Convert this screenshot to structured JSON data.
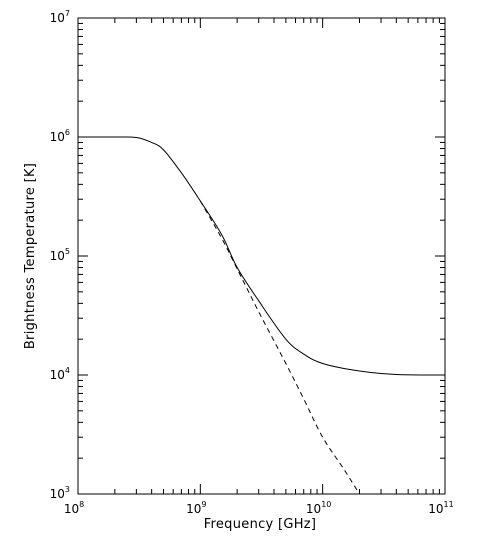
{
  "chart_data": {
    "type": "line",
    "title": "",
    "xlabel": "Frequency [GHz]",
    "ylabel": "Brightness Temperature [K]",
    "xscale": "log",
    "yscale": "log",
    "xlim": [
      100000000,
      100000000000
    ],
    "ylim": [
      1000,
      10000000
    ],
    "grid": false,
    "x_ticks": [
      {
        "base": "10",
        "exp": "8",
        "value": 100000000
      },
      {
        "base": "10",
        "exp": "9",
        "value": 1000000000
      },
      {
        "base": "10",
        "exp": "10",
        "value": 10000000000
      },
      {
        "base": "10",
        "exp": "11",
        "value": 100000000000
      }
    ],
    "y_ticks": [
      {
        "base": "10",
        "exp": "3",
        "value": 1000
      },
      {
        "base": "10",
        "exp": "4",
        "value": 10000
      },
      {
        "base": "10",
        "exp": "5",
        "value": 100000
      },
      {
        "base": "10",
        "exp": "6",
        "value": 1000000
      },
      {
        "base": "10",
        "exp": "7",
        "value": 10000000
      }
    ],
    "series": [
      {
        "style": "solid",
        "x": [
          100000000,
          200000000,
          300000000,
          400000000,
          500000000,
          700000000,
          1000000000,
          1500000000,
          2000000000,
          3000000000,
          5000000000,
          7000000000,
          10000000000,
          20000000000,
          40000000000,
          100000000000
        ],
        "y": [
          1000000,
          1000000,
          990000,
          900000,
          780000,
          500000,
          290000,
          150000,
          80000,
          42000,
          20000,
          15000,
          12500,
          10800,
          10100,
          10000
        ]
      },
      {
        "style": "dashed",
        "x": [
          1000000000,
          1500000000,
          2000000000,
          3000000000,
          5000000000,
          7000000000,
          10000000000,
          15000000000,
          20000000000
        ],
        "y": [
          290000,
          140000,
          78000,
          34000,
          12500,
          6300,
          3000,
          1600,
          1000
        ]
      }
    ]
  }
}
